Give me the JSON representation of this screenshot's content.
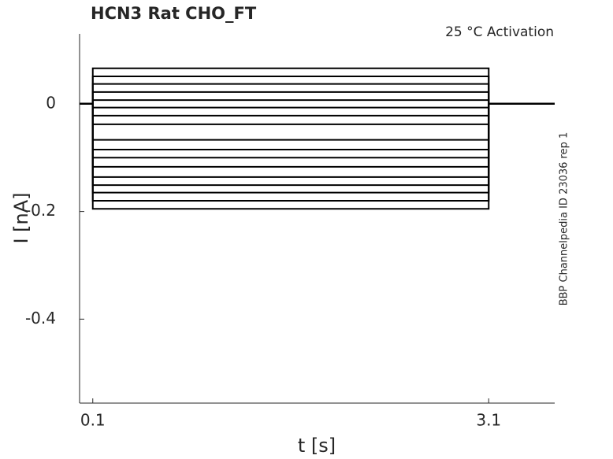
{
  "chart_data": {
    "type": "line",
    "title": "HCN3  Rat  CHO_FT",
    "annotation": "25 °C  Activation",
    "side_note": "BBP Channelpedia ID 23036 rep 1",
    "xlabel": "t [s]",
    "ylabel": "I [nA]",
    "x": [
      0,
      0.1,
      0.1,
      3.1,
      3.1,
      3.6
    ],
    "series": [
      {
        "color": "#000000",
        "values": [
          0,
          0,
          0.066,
          0.066,
          0,
          0
        ]
      },
      {
        "color": "#000000",
        "values": [
          0,
          0,
          0.051,
          0.051,
          0,
          0
        ]
      },
      {
        "color": "#000000",
        "values": [
          0,
          0,
          0.037,
          0.037,
          0,
          0
        ]
      },
      {
        "color": "#000000",
        "values": [
          0,
          0,
          0.022,
          0.022,
          0,
          0
        ]
      },
      {
        "color": "#000000",
        "values": [
          0,
          0,
          0.007,
          0.007,
          0,
          0
        ]
      },
      {
        "color": "#000000",
        "values": [
          0,
          0,
          -0.007,
          -0.007,
          0,
          0
        ]
      },
      {
        "color": "#000000",
        "values": [
          0,
          0,
          -0.022,
          -0.022,
          0,
          0
        ]
      },
      {
        "color": "#000000",
        "values": [
          0,
          0,
          -0.038,
          -0.038,
          0,
          0
        ]
      },
      {
        "color": "#000000",
        "values": [
          0,
          0,
          -0.067,
          -0.067,
          0,
          0
        ]
      },
      {
        "color": "#000000",
        "values": [
          0,
          0,
          -0.085,
          -0.085,
          0,
          0
        ]
      },
      {
        "color": "#000000",
        "values": [
          0,
          0,
          -0.1,
          -0.1,
          0,
          0
        ]
      },
      {
        "color": "#000000",
        "values": [
          0,
          0,
          -0.117,
          -0.117,
          0,
          0
        ]
      },
      {
        "color": "#000000",
        "values": [
          0,
          0,
          -0.136,
          -0.136,
          0,
          0
        ]
      },
      {
        "color": "#000000",
        "values": [
          0,
          0,
          -0.151,
          -0.151,
          0,
          0
        ]
      },
      {
        "color": "#000000",
        "values": [
          0,
          0,
          -0.165,
          -0.165,
          0,
          0
        ]
      },
      {
        "color": "#000000",
        "values": [
          0,
          0,
          -0.18,
          -0.18,
          0,
          0
        ]
      },
      {
        "color": "#000000",
        "values": [
          0,
          0,
          -0.195,
          -0.195,
          0,
          0
        ]
      }
    ],
    "xlim": [
      0,
      3.6
    ],
    "xticks": [
      0.1,
      3.1
    ],
    "ylim": [
      -0.556,
      0.13
    ],
    "yticks": [
      0,
      -0.2,
      -0.4
    ],
    "grid": false
  }
}
